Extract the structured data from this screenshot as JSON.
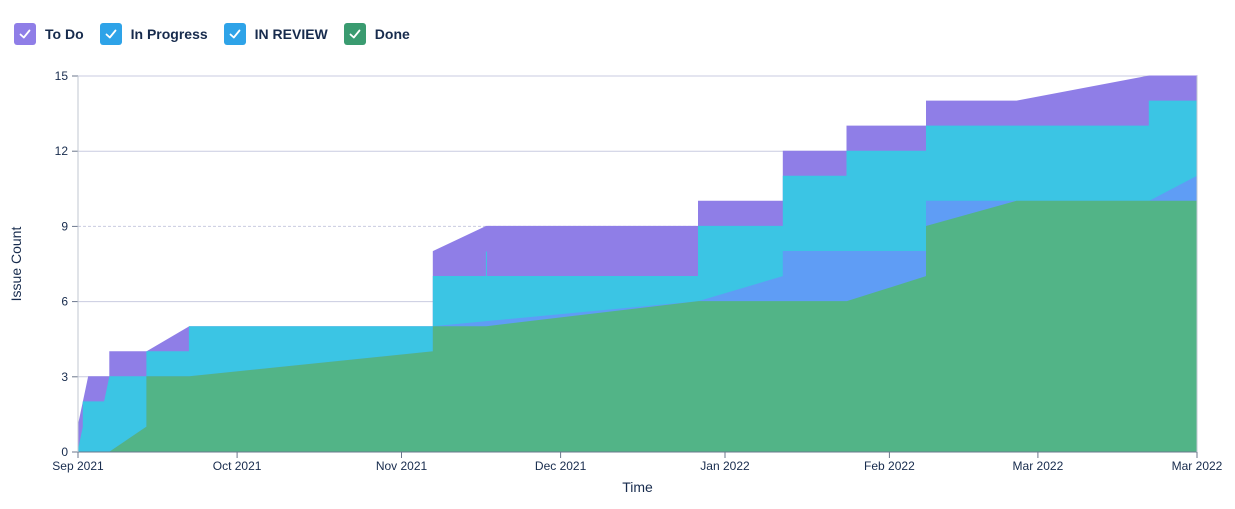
{
  "legend": [
    {
      "label": "To Do",
      "color": "#8f7ee7",
      "icon": "check-icon"
    },
    {
      "label": "In Progress",
      "color": "#2ea3e8",
      "icon": "check-icon"
    },
    {
      "label": "IN REVIEW",
      "color": "#2ea3e8",
      "icon": "check-icon"
    },
    {
      "label": "Done",
      "color": "#3a9b70",
      "icon": "check-icon"
    }
  ],
  "chart_data": {
    "type": "area",
    "stacked": false,
    "xlabel": "Time",
    "ylabel": "Issue Count",
    "xlim": [
      "2021-09-01",
      "2022-03-31"
    ],
    "ylim": [
      0,
      15
    ],
    "yticks": [
      0,
      3,
      6,
      9,
      12,
      15
    ],
    "xticks": [
      {
        "date": "2021-09-01",
        "label": "Sep 2021"
      },
      {
        "date": "2021-10-01",
        "label": "Oct 2021"
      },
      {
        "date": "2021-11-01",
        "label": "Nov 2021"
      },
      {
        "date": "2021-12-01",
        "label": "Dec 2021"
      },
      {
        "date": "2022-01-01",
        "label": "Jan 2022"
      },
      {
        "date": "2022-02-01",
        "label": "Feb 2022"
      },
      {
        "date": "2022-03-01",
        "label": "Mar 2022"
      },
      {
        "date": "2022-03-31",
        "label": "Mar 2022"
      }
    ],
    "grid": "horizontal",
    "legend_position": "top-left",
    "series": [
      {
        "name": "To Do",
        "color": "#8f7ee7",
        "x": [
          "2021-09-01",
          "2021-09-01",
          "2021-09-03",
          "2021-09-07",
          "2021-09-07",
          "2021-09-14",
          "2021-09-14",
          "2021-09-22",
          "2021-09-22",
          "2021-11-07",
          "2021-11-07",
          "2021-11-17",
          "2021-12-27",
          "2021-12-27",
          "2022-01-12",
          "2022-01-12",
          "2022-01-24",
          "2022-01-24",
          "2022-02-08",
          "2022-02-08",
          "2022-02-25",
          "2022-03-22",
          "2022-03-31"
        ],
        "y": [
          0,
          1,
          3,
          3,
          4,
          4,
          4,
          5,
          5,
          5,
          8,
          9,
          9,
          10,
          10,
          12,
          12,
          13,
          13,
          14,
          14,
          15,
          15
        ]
      },
      {
        "name": "In Progress",
        "color": "#3bc5e4",
        "x": [
          "2021-09-01",
          "2021-09-02",
          "2021-09-02",
          "2021-09-06",
          "2021-09-07",
          "2021-09-07",
          "2021-09-14",
          "2021-09-14",
          "2021-09-22",
          "2021-09-22",
          "2021-11-07",
          "2021-11-07",
          "2021-11-17",
          "2021-11-17",
          "2021-11-17",
          "2021-12-27",
          "2021-12-27",
          "2022-01-12",
          "2022-01-12",
          "2022-01-24",
          "2022-01-24",
          "2022-02-08",
          "2022-02-08",
          "2022-03-22",
          "2022-03-22",
          "2022-03-31"
        ],
        "y": [
          0,
          1,
          2,
          2,
          3,
          3,
          3,
          4,
          4,
          5,
          5,
          7,
          7,
          8,
          7,
          7,
          9,
          9,
          11,
          11,
          12,
          12,
          13,
          13,
          14,
          14
        ]
      },
      {
        "name": "IN REVIEW",
        "color": "#5f9df5",
        "x": [
          "2021-09-01",
          "2021-09-07",
          "2021-09-14",
          "2021-09-14",
          "2021-09-22",
          "2021-11-07",
          "2021-11-07",
          "2021-12-27",
          "2022-01-12",
          "2022-01-12",
          "2022-02-08",
          "2022-02-08",
          "2022-03-22",
          "2022-03-31"
        ],
        "y": [
          0,
          0,
          1,
          3,
          3,
          4,
          5,
          6,
          7,
          8,
          8,
          10,
          10,
          11
        ]
      },
      {
        "name": "Done",
        "color": "#52b487",
        "x": [
          "2021-09-01",
          "2021-09-07",
          "2021-09-14",
          "2021-09-14",
          "2021-09-22",
          "2021-11-07",
          "2021-11-07",
          "2021-11-17",
          "2021-12-27",
          "2022-01-24",
          "2022-02-08",
          "2022-02-08",
          "2022-02-25",
          "2022-03-22",
          "2022-03-31"
        ],
        "y": [
          0,
          0,
          1,
          3,
          3,
          4,
          5,
          5,
          6,
          6,
          7,
          9,
          10,
          10,
          10
        ]
      }
    ]
  }
}
